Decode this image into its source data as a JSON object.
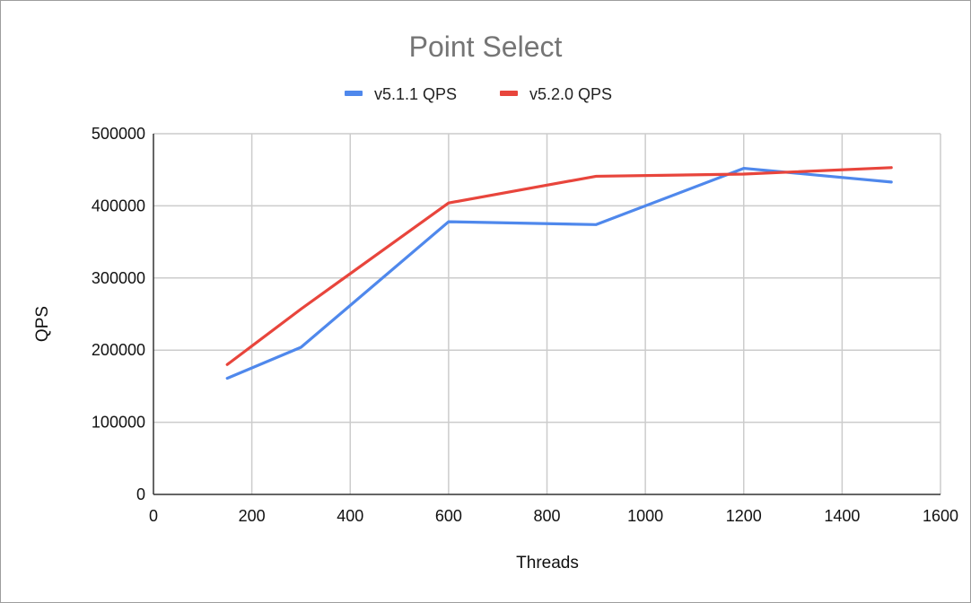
{
  "chart_data": {
    "type": "line",
    "title": "Point Select",
    "xlabel": "Threads",
    "ylabel": "QPS",
    "xlim": [
      0,
      1600
    ],
    "ylim": [
      0,
      500000
    ],
    "xticks": [
      "0",
      "200",
      "400",
      "600",
      "800",
      "1000",
      "1200",
      "1400",
      "1600"
    ],
    "yticks": [
      "0",
      "100000",
      "200000",
      "300000",
      "400000",
      "500000"
    ],
    "grid": true,
    "legend_position": "top",
    "x": [
      150,
      300,
      600,
      900,
      1200,
      1500
    ],
    "series": [
      {
        "name": "v5.1.1 QPS",
        "color": "#4f88ec",
        "values": [
          161000,
          204000,
          378000,
          374000,
          452000,
          433000
        ]
      },
      {
        "name": "v5.2.0 QPS",
        "color": "#e8453c",
        "values": [
          180000,
          257000,
          404000,
          441000,
          444000,
          453000
        ]
      }
    ]
  }
}
